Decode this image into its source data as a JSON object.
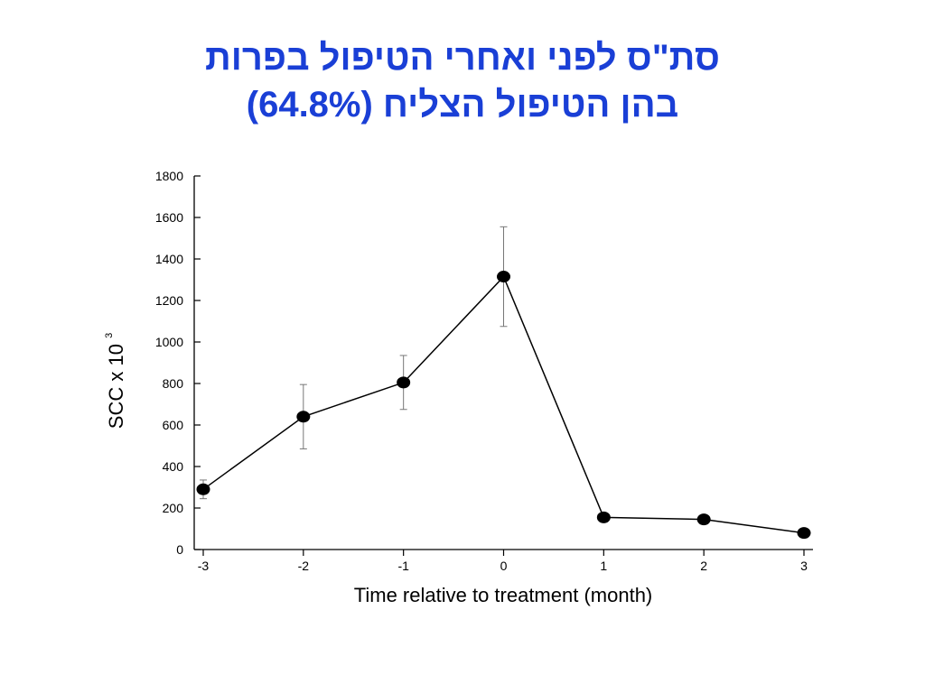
{
  "title": {
    "line1": "סת\"ס לפני ואחרי הטיפול בפרות",
    "line2": "בהן הטיפול הצליח (64.8%)"
  },
  "chart_data": {
    "type": "line",
    "title": "סת\"ס לפני ואחרי הטיפול בפרות בהן הטיפול הצליח (64.8%)",
    "xlabel": "Time relative to treatment (month)",
    "ylabel_base": "SCC x 10",
    "ylabel_exponent": "3",
    "x": [
      -3,
      -2,
      -1,
      0,
      1,
      2,
      3
    ],
    "xticks": [
      "-3",
      "-2",
      "-1",
      "0",
      "1",
      "2",
      "3"
    ],
    "yticks": [
      "0",
      "200",
      "400",
      "600",
      "800",
      "1000",
      "1200",
      "1400",
      "1600",
      "1800"
    ],
    "xlim": [
      -3,
      3
    ],
    "ylim": [
      0,
      1800
    ],
    "grid": false,
    "series": [
      {
        "values": [
          290,
          640,
          805,
          1315,
          155,
          145,
          80
        ],
        "error": [
          45,
          155,
          130,
          240,
          20,
          20,
          15
        ]
      }
    ],
    "colors": {
      "line": "#000000",
      "marker": "#000000",
      "title": "#1a3fd6"
    }
  }
}
